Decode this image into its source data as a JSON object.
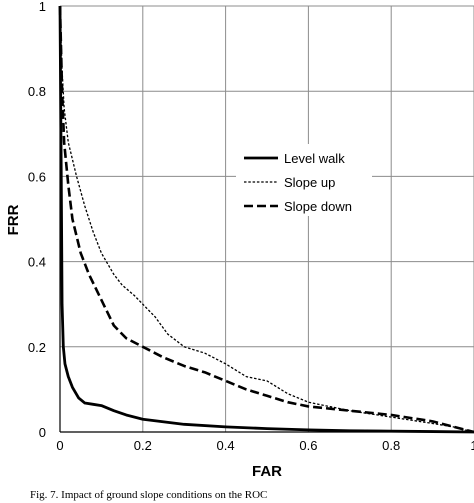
{
  "chart_data": {
    "type": "line",
    "title": "",
    "xlabel": "FAR",
    "ylabel": "FRR",
    "xlim": [
      0,
      1
    ],
    "ylim": [
      0,
      1
    ],
    "x_ticks": [
      "0",
      "0.2",
      "0.4",
      "0.6",
      "0.8",
      "1"
    ],
    "y_ticks": [
      "0",
      "0.2",
      "0.4",
      "0.6",
      "0.8",
      "1"
    ],
    "grid": true,
    "legend_position": "upper-right",
    "series": [
      {
        "name": "Level walk",
        "style": "solid",
        "points": [
          [
            0.0,
            1.0
          ],
          [
            0.003,
            0.6
          ],
          [
            0.005,
            0.3
          ],
          [
            0.008,
            0.2
          ],
          [
            0.012,
            0.16
          ],
          [
            0.02,
            0.13
          ],
          [
            0.03,
            0.105
          ],
          [
            0.045,
            0.08
          ],
          [
            0.06,
            0.068
          ],
          [
            0.08,
            0.065
          ],
          [
            0.1,
            0.062
          ],
          [
            0.13,
            0.05
          ],
          [
            0.16,
            0.04
          ],
          [
            0.2,
            0.03
          ],
          [
            0.3,
            0.018
          ],
          [
            0.4,
            0.012
          ],
          [
            0.5,
            0.008
          ],
          [
            0.6,
            0.005
          ],
          [
            0.7,
            0.003
          ],
          [
            0.8,
            0.002
          ],
          [
            0.9,
            0.001
          ],
          [
            1.0,
            0.0
          ]
        ]
      },
      {
        "name": "Slope up",
        "style": "dotted",
        "points": [
          [
            0.0,
            1.0
          ],
          [
            0.005,
            0.85
          ],
          [
            0.01,
            0.76
          ],
          [
            0.02,
            0.68
          ],
          [
            0.04,
            0.6
          ],
          [
            0.06,
            0.53
          ],
          [
            0.08,
            0.47
          ],
          [
            0.1,
            0.42
          ],
          [
            0.13,
            0.37
          ],
          [
            0.15,
            0.345
          ],
          [
            0.18,
            0.32
          ],
          [
            0.2,
            0.3
          ],
          [
            0.23,
            0.27
          ],
          [
            0.26,
            0.23
          ],
          [
            0.3,
            0.2
          ],
          [
            0.35,
            0.185
          ],
          [
            0.4,
            0.16
          ],
          [
            0.45,
            0.13
          ],
          [
            0.5,
            0.12
          ],
          [
            0.55,
            0.09
          ],
          [
            0.6,
            0.07
          ],
          [
            0.7,
            0.05
          ],
          [
            0.8,
            0.035
          ],
          [
            0.9,
            0.02
          ],
          [
            0.95,
            0.012
          ],
          [
            1.0,
            0.0
          ]
        ]
      },
      {
        "name": "Slope down",
        "style": "dashed",
        "points": [
          [
            0.0,
            1.0
          ],
          [
            0.005,
            0.8
          ],
          [
            0.01,
            0.68
          ],
          [
            0.02,
            0.58
          ],
          [
            0.03,
            0.5
          ],
          [
            0.05,
            0.42
          ],
          [
            0.07,
            0.37
          ],
          [
            0.1,
            0.31
          ],
          [
            0.13,
            0.25
          ],
          [
            0.16,
            0.22
          ],
          [
            0.2,
            0.2
          ],
          [
            0.25,
            0.175
          ],
          [
            0.3,
            0.155
          ],
          [
            0.35,
            0.14
          ],
          [
            0.4,
            0.12
          ],
          [
            0.45,
            0.1
          ],
          [
            0.5,
            0.085
          ],
          [
            0.55,
            0.07
          ],
          [
            0.6,
            0.06
          ],
          [
            0.7,
            0.05
          ],
          [
            0.8,
            0.04
          ],
          [
            0.9,
            0.025
          ],
          [
            1.0,
            0.0
          ]
        ]
      }
    ]
  },
  "caption": "Fig. 7. Impact of ground slope conditions on the ROC"
}
